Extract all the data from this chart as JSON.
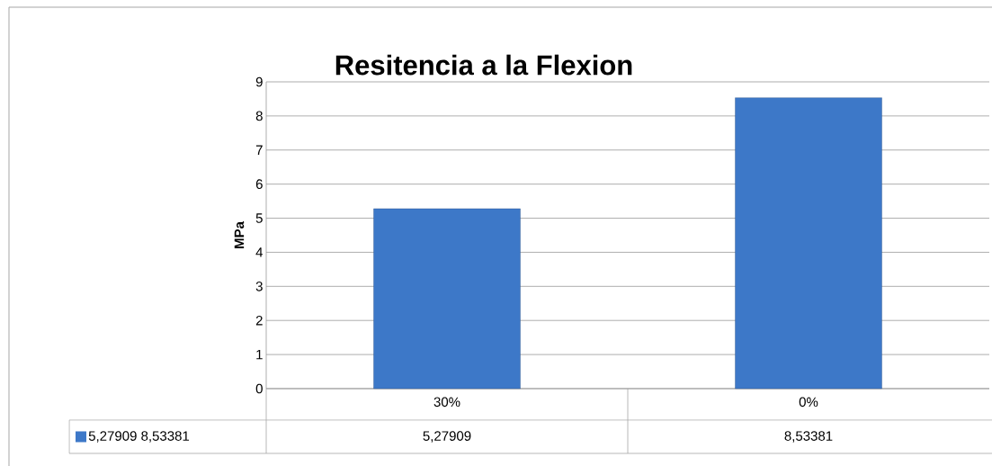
{
  "chart_data": {
    "type": "bar",
    "title": "Resitencia a la  Flexion",
    "ylabel": "MPa",
    "categories": [
      "30%",
      "0%"
    ],
    "series": [
      {
        "name": "5,27909 8,53381",
        "color": "#3d78c8",
        "values": [
          5.27909,
          8.53381
        ],
        "value_labels": [
          "5,27909",
          "8,53381"
        ]
      }
    ],
    "ylim": [
      0,
      9
    ],
    "yticks": [
      0,
      1,
      2,
      3,
      4,
      5,
      6,
      7,
      8,
      9
    ],
    "grid": "y",
    "legend": "bottom"
  }
}
